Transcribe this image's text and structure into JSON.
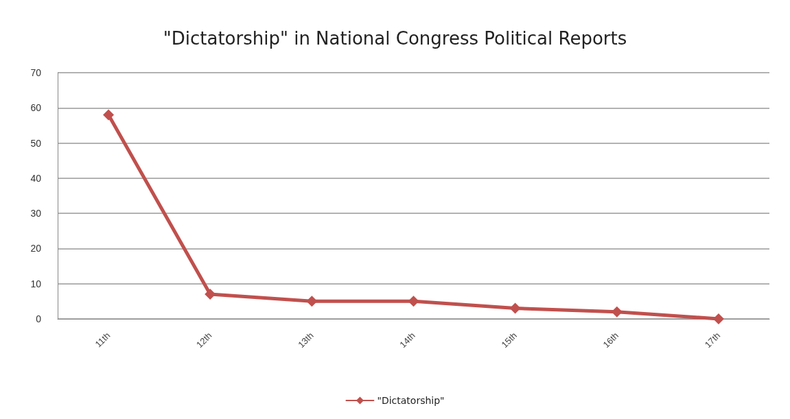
{
  "chart_data": {
    "type": "line",
    "title": "\"Dictatorship\" in National Congress Political Reports",
    "categories": [
      "11th",
      "12th",
      "13th",
      "14th",
      "15th",
      "16th",
      "17th"
    ],
    "series": [
      {
        "name": "\"Dictatorship\"",
        "color": "#c0504d",
        "values": [
          58,
          7,
          5,
          5,
          3,
          2,
          0
        ]
      }
    ],
    "ylim": [
      0,
      70
    ],
    "yticks": [
      0,
      10,
      20,
      30,
      40,
      50,
      60,
      70
    ],
    "grid": "y",
    "legend": "bottom",
    "marker": "diamond",
    "line_style": "solid"
  }
}
